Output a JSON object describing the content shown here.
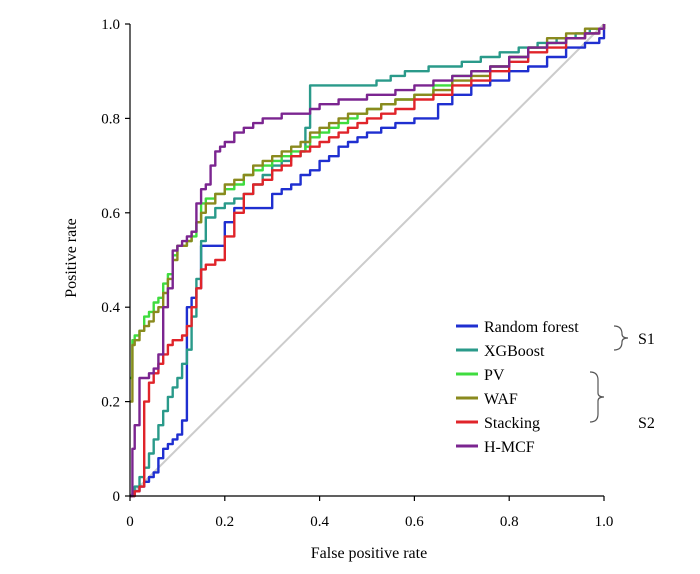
{
  "chart_data": {
    "type": "line",
    "title": "",
    "xlabel": "False positive rate",
    "ylabel": "Positive rate",
    "xlim": [
      0,
      1
    ],
    "ylim": [
      0,
      1
    ],
    "x_ticks": [
      "0",
      "0.2",
      "0.4",
      "0.6",
      "0.8",
      "1.0"
    ],
    "y_ticks": [
      "0",
      "0.2",
      "0.4",
      "0.6",
      "0.8",
      "1.0"
    ],
    "grid": false,
    "legend_position": "bottom-right",
    "diagonal_reference": {
      "x": [
        0,
        1
      ],
      "y": [
        0,
        1
      ],
      "color": "#cccccc"
    },
    "groups": [
      {
        "label": "S1",
        "members": [
          "Random forest",
          "XGBoost"
        ]
      },
      {
        "label": "S2",
        "members": [
          "PV",
          "WAF",
          "Stacking",
          "H-MCF"
        ]
      }
    ],
    "series": [
      {
        "name": "Random forest",
        "color": "#1f2fd0",
        "x": [
          0,
          0.01,
          0.02,
          0.03,
          0.04,
          0.05,
          0.06,
          0.07,
          0.08,
          0.09,
          0.1,
          0.11,
          0.12,
          0.13,
          0.14,
          0.15,
          0.16,
          0.18,
          0.2,
          0.22,
          0.24,
          0.26,
          0.28,
          0.3,
          0.32,
          0.34,
          0.36,
          0.38,
          0.4,
          0.42,
          0.44,
          0.46,
          0.48,
          0.5,
          0.53,
          0.56,
          0.58,
          0.6,
          0.62,
          0.65,
          0.68,
          0.72,
          0.76,
          0.8,
          0.84,
          0.88,
          0.92,
          0.96,
          0.99,
          1.0
        ],
        "y": [
          0,
          0.01,
          0.02,
          0.03,
          0.04,
          0.05,
          0.08,
          0.1,
          0.11,
          0.12,
          0.13,
          0.16,
          0.4,
          0.42,
          0.44,
          0.53,
          0.53,
          0.53,
          0.58,
          0.61,
          0.61,
          0.61,
          0.61,
          0.64,
          0.65,
          0.66,
          0.68,
          0.69,
          0.71,
          0.72,
          0.74,
          0.75,
          0.76,
          0.77,
          0.78,
          0.79,
          0.79,
          0.8,
          0.8,
          0.83,
          0.85,
          0.87,
          0.88,
          0.9,
          0.91,
          0.93,
          0.95,
          0.96,
          0.97,
          1.0
        ]
      },
      {
        "name": "XGBoost",
        "color": "#2a9a8a",
        "x": [
          0,
          0.01,
          0.02,
          0.03,
          0.04,
          0.05,
          0.06,
          0.07,
          0.08,
          0.09,
          0.1,
          0.11,
          0.12,
          0.13,
          0.14,
          0.15,
          0.16,
          0.18,
          0.2,
          0.22,
          0.24,
          0.26,
          0.28,
          0.3,
          0.32,
          0.34,
          0.36,
          0.37,
          0.38,
          0.4,
          0.42,
          0.44,
          0.46,
          0.48,
          0.5,
          0.52,
          0.55,
          0.58,
          0.6,
          0.63,
          0.66,
          0.7,
          0.74,
          0.78,
          0.82,
          0.86,
          0.9,
          0.94,
          0.97,
          1.0
        ],
        "y": [
          0,
          0.02,
          0.04,
          0.06,
          0.09,
          0.12,
          0.15,
          0.18,
          0.21,
          0.23,
          0.25,
          0.28,
          0.31,
          0.38,
          0.46,
          0.54,
          0.59,
          0.61,
          0.62,
          0.63,
          0.64,
          0.66,
          0.68,
          0.7,
          0.71,
          0.72,
          0.73,
          0.78,
          0.87,
          0.87,
          0.87,
          0.87,
          0.87,
          0.87,
          0.87,
          0.88,
          0.89,
          0.9,
          0.9,
          0.91,
          0.91,
          0.92,
          0.93,
          0.94,
          0.95,
          0.96,
          0.97,
          0.98,
          0.99,
          1.0
        ]
      },
      {
        "name": "PV",
        "color": "#3fdc3f",
        "x": [
          0,
          0.005,
          0.01,
          0.02,
          0.03,
          0.04,
          0.05,
          0.06,
          0.07,
          0.08,
          0.09,
          0.1,
          0.11,
          0.12,
          0.13,
          0.14,
          0.15,
          0.16,
          0.18,
          0.2,
          0.22,
          0.24,
          0.26,
          0.28,
          0.3,
          0.32,
          0.34,
          0.36,
          0.37,
          0.38,
          0.4,
          0.42,
          0.44,
          0.46,
          0.48,
          0.5,
          0.53,
          0.56,
          0.6,
          0.64,
          0.68,
          0.72,
          0.76,
          0.8,
          0.84,
          0.88,
          0.92,
          0.96,
          0.99,
          1.0
        ],
        "y": [
          0.25,
          0.33,
          0.34,
          0.35,
          0.38,
          0.39,
          0.41,
          0.42,
          0.45,
          0.47,
          0.51,
          0.53,
          0.53,
          0.54,
          0.55,
          0.58,
          0.62,
          0.63,
          0.64,
          0.65,
          0.66,
          0.68,
          0.69,
          0.7,
          0.71,
          0.72,
          0.73,
          0.73,
          0.74,
          0.76,
          0.77,
          0.78,
          0.79,
          0.8,
          0.81,
          0.82,
          0.83,
          0.84,
          0.85,
          0.87,
          0.89,
          0.9,
          0.91,
          0.93,
          0.95,
          0.96,
          0.97,
          0.98,
          0.99,
          1.0
        ]
      },
      {
        "name": "WAF",
        "color": "#8a8a1e",
        "x": [
          0,
          0.005,
          0.01,
          0.02,
          0.03,
          0.04,
          0.05,
          0.06,
          0.07,
          0.08,
          0.09,
          0.1,
          0.11,
          0.12,
          0.13,
          0.14,
          0.15,
          0.16,
          0.18,
          0.2,
          0.22,
          0.24,
          0.26,
          0.28,
          0.3,
          0.32,
          0.34,
          0.36,
          0.38,
          0.4,
          0.42,
          0.44,
          0.46,
          0.48,
          0.5,
          0.53,
          0.56,
          0.6,
          0.64,
          0.68,
          0.72,
          0.76,
          0.8,
          0.84,
          0.88,
          0.92,
          0.96,
          0.99,
          1.0
        ],
        "y": [
          0.2,
          0.32,
          0.33,
          0.35,
          0.36,
          0.37,
          0.39,
          0.4,
          0.43,
          0.46,
          0.5,
          0.53,
          0.53,
          0.54,
          0.56,
          0.58,
          0.6,
          0.62,
          0.64,
          0.66,
          0.67,
          0.68,
          0.7,
          0.71,
          0.72,
          0.73,
          0.74,
          0.75,
          0.77,
          0.78,
          0.79,
          0.8,
          0.81,
          0.81,
          0.82,
          0.83,
          0.84,
          0.85,
          0.86,
          0.88,
          0.89,
          0.91,
          0.93,
          0.95,
          0.97,
          0.98,
          0.99,
          0.99,
          1.0
        ]
      },
      {
        "name": "Stacking",
        "color": "#e0242a",
        "x": [
          0,
          0.01,
          0.02,
          0.03,
          0.04,
          0.05,
          0.06,
          0.07,
          0.08,
          0.09,
          0.1,
          0.11,
          0.12,
          0.13,
          0.14,
          0.15,
          0.16,
          0.18,
          0.2,
          0.22,
          0.24,
          0.26,
          0.28,
          0.3,
          0.32,
          0.34,
          0.36,
          0.38,
          0.4,
          0.42,
          0.44,
          0.46,
          0.48,
          0.5,
          0.53,
          0.56,
          0.6,
          0.64,
          0.68,
          0.72,
          0.76,
          0.8,
          0.84,
          0.88,
          0.92,
          0.96,
          0.99,
          1.0
        ],
        "y": [
          0,
          0.01,
          0.02,
          0.2,
          0.24,
          0.26,
          0.28,
          0.3,
          0.32,
          0.33,
          0.33,
          0.34,
          0.36,
          0.4,
          0.44,
          0.48,
          0.49,
          0.5,
          0.55,
          0.6,
          0.64,
          0.66,
          0.67,
          0.69,
          0.7,
          0.72,
          0.73,
          0.74,
          0.75,
          0.76,
          0.77,
          0.78,
          0.79,
          0.8,
          0.81,
          0.82,
          0.84,
          0.85,
          0.87,
          0.88,
          0.9,
          0.92,
          0.94,
          0.95,
          0.97,
          0.98,
          0.99,
          1.0
        ]
      },
      {
        "name": "H-MCF",
        "color": "#7b2590",
        "x": [
          0,
          0.005,
          0.01,
          0.02,
          0.03,
          0.04,
          0.05,
          0.06,
          0.07,
          0.08,
          0.09,
          0.1,
          0.11,
          0.12,
          0.13,
          0.14,
          0.15,
          0.16,
          0.17,
          0.18,
          0.19,
          0.2,
          0.22,
          0.24,
          0.26,
          0.28,
          0.3,
          0.32,
          0.34,
          0.36,
          0.38,
          0.4,
          0.42,
          0.44,
          0.46,
          0.48,
          0.5,
          0.53,
          0.56,
          0.6,
          0.64,
          0.68,
          0.72,
          0.76,
          0.8,
          0.84,
          0.88,
          0.92,
          0.96,
          0.99,
          1.0
        ],
        "y": [
          0,
          0.1,
          0.15,
          0.25,
          0.25,
          0.26,
          0.27,
          0.3,
          0.4,
          0.44,
          0.52,
          0.53,
          0.54,
          0.55,
          0.56,
          0.62,
          0.65,
          0.66,
          0.7,
          0.73,
          0.74,
          0.75,
          0.77,
          0.78,
          0.79,
          0.8,
          0.8,
          0.81,
          0.81,
          0.81,
          0.82,
          0.83,
          0.83,
          0.84,
          0.84,
          0.84,
          0.85,
          0.85,
          0.86,
          0.87,
          0.88,
          0.89,
          0.9,
          0.91,
          0.93,
          0.95,
          0.96,
          0.97,
          0.98,
          0.99,
          1.0
        ]
      }
    ]
  }
}
